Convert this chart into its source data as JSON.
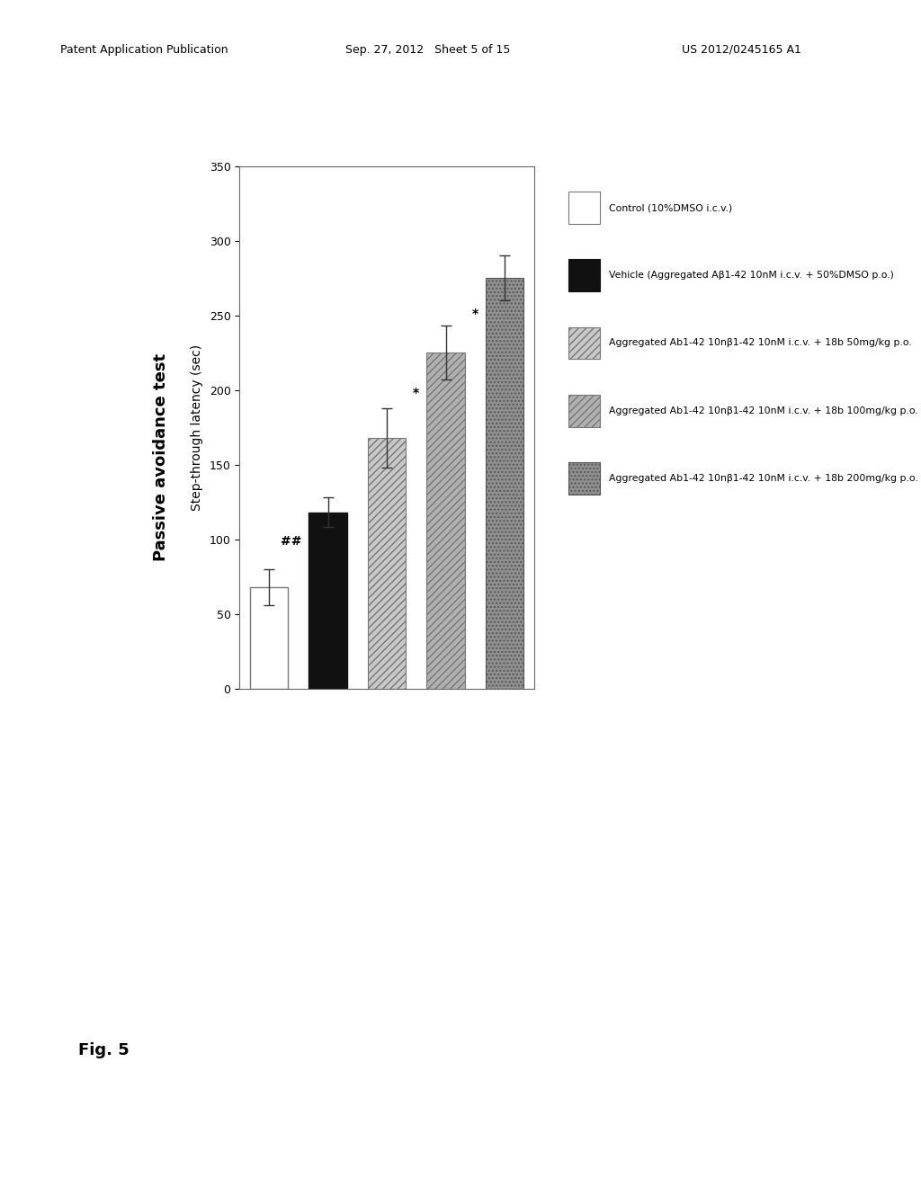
{
  "title": "Passive avoidance test",
  "xlabel": "Step-through latency (sec)",
  "xlim": [
    0,
    350
  ],
  "xticks": [
    0,
    50,
    100,
    150,
    200,
    250,
    300,
    350
  ],
  "xtick_labels": [
    "0",
    "50",
    "100",
    "150",
    "200",
    "250",
    "300",
    "350"
  ],
  "bars": [
    {
      "value": 68,
      "error": 12,
      "color": "white",
      "hatch": "",
      "edgecolor": "#777777",
      "significance": "",
      "lw": 1.0
    },
    {
      "value": 118,
      "error": 10,
      "color": "#111111",
      "hatch": "",
      "edgecolor": "#111111",
      "significance": "##",
      "lw": 1.0
    },
    {
      "value": 168,
      "error": 20,
      "color": "#c8c8c8",
      "hatch": "////",
      "edgecolor": "#777777",
      "significance": "",
      "lw": 0.8
    },
    {
      "value": 225,
      "error": 18,
      "color": "#b0b0b0",
      "hatch": "////",
      "edgecolor": "#777777",
      "significance": "*",
      "lw": 0.8
    },
    {
      "value": 275,
      "error": 15,
      "color": "#909090",
      "hatch": "....",
      "edgecolor": "#555555",
      "significance": "*",
      "lw": 0.8
    }
  ],
  "legend_items": [
    {
      "color": "white",
      "hatch": "",
      "edgecolor": "#777777",
      "text": "Control (10%DMSO i.c.v.)"
    },
    {
      "color": "#111111",
      "hatch": "",
      "edgecolor": "#111111",
      "text": "Vehicle (Aggregated Aβ1-42 10nM i.c.v. + 50%DMSO p.o.)"
    },
    {
      "color": "#c8c8c8",
      "hatch": "////",
      "edgecolor": "#777777",
      "text": "Aggregated Ab1-42 10nβ1-42 10nM i.c.v. + 18b 50mg/kg p.o."
    },
    {
      "color": "#b0b0b0",
      "hatch": "////",
      "edgecolor": "#777777",
      "text": "Aggregated Ab1-42 10nβ1-42 10nM i.c.v. + 18b 100mg/kg p.o."
    },
    {
      "color": "#909090",
      "hatch": "....",
      "edgecolor": "#555555",
      "text": "Aggregated Ab1-42 10nβ1-42 10nM i.c.v. + 18b 200mg/kg p.o."
    }
  ],
  "background_color": "#ffffff",
  "fig_width": 10.24,
  "fig_height": 13.2,
  "header_left": "Patent Application Publication",
  "header_mid": "Sep. 27, 2012   Sheet 5 of 15",
  "header_right": "US 2012/0245165 A1",
  "fig_label": "Fig. 5"
}
